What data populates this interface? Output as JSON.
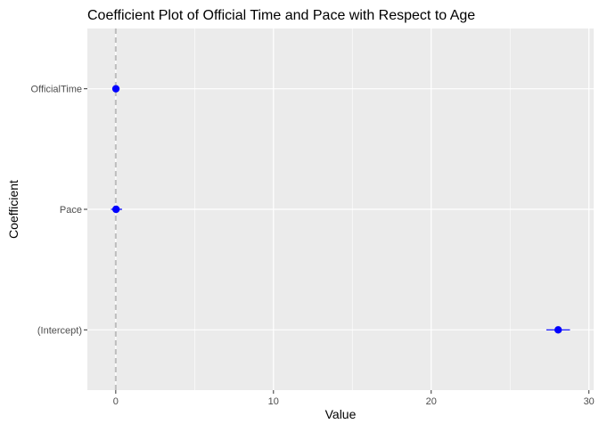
{
  "chart_data": {
    "type": "coefficient-plot",
    "title": "Coefficient Plot of Official Time and Pace with Respect to Age",
    "xlabel": "Value",
    "ylabel": "Coefficient",
    "xlim": [
      -1.8,
      30.3
    ],
    "xticks": [
      0,
      10,
      20,
      30
    ],
    "x_tick_labels": [
      "0",
      "10",
      "20",
      "30"
    ],
    "x_minor_ticks": [
      5,
      15,
      25
    ],
    "categories": [
      "OfficialTime",
      "Pace",
      "(Intercept)"
    ],
    "series": [
      {
        "estimates": [
          0.01,
          0.02,
          28.05
        ],
        "ci_low": [
          -0.05,
          -0.3,
          27.3
        ],
        "ci_high": [
          0.07,
          0.4,
          28.8
        ]
      }
    ],
    "reference_line": {
      "x": 0,
      "style": "dashed"
    },
    "grid": true,
    "colors": {
      "panel": "#ebebeb",
      "grid": "#ffffff",
      "point": "#0000ff",
      "reference": "#bebebe",
      "text": "#4d4d4d",
      "title": "#000000"
    }
  }
}
